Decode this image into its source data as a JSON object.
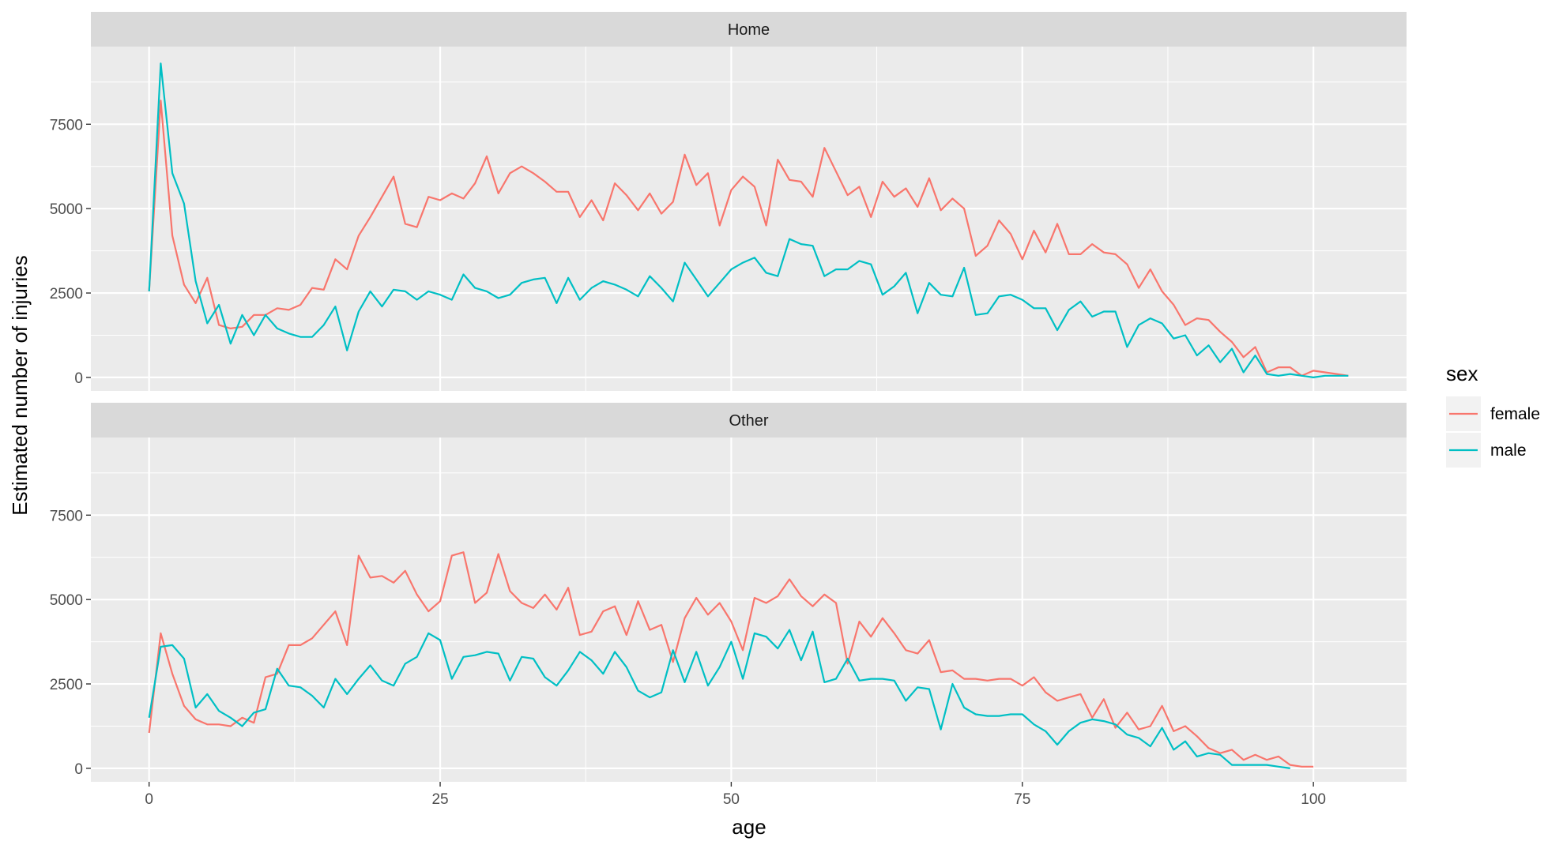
{
  "chart_data": {
    "type": "line",
    "facets": [
      "Home",
      "Other"
    ],
    "xlabel": "age",
    "ylabel": "Estimated number of injuries",
    "xlim": [
      -5,
      108
    ],
    "ylim": [
      -400,
      9800
    ],
    "x_ticks": [
      0,
      25,
      50,
      75,
      100
    ],
    "y_ticks": [
      0,
      2500,
      5000,
      7500
    ],
    "grid": true,
    "legend": {
      "title": "sex",
      "position": "right"
    },
    "colors": {
      "female": "#F8766D",
      "male": "#00BFC4"
    },
    "panels": [
      {
        "facet": "Home",
        "series": [
          {
            "name": "female",
            "x_start": 0,
            "values": [
              2550,
              8200,
              4200,
              2750,
              2200,
              2950,
              1550,
              1450,
              1500,
              1850,
              1850,
              2050,
              2000,
              2150,
              2650,
              2600,
              3500,
              3200,
              4200,
              4750,
              5350,
              5950,
              4550,
              4450,
              5350,
              5250,
              5450,
              5300,
              5750,
              6550,
              5450,
              6050,
              6250,
              6050,
              5800,
              5500,
              5500,
              4750,
              5250,
              4650,
              5750,
              5400,
              4950,
              5450,
              4850,
              5200,
              6600,
              5700,
              6050,
              4500,
              5550,
              5950,
              5650,
              4500,
              6450,
              5850,
              5800,
              5350,
              6800,
              6100,
              5400,
              5650,
              4750,
              5800,
              5350,
              5600,
              5050,
              5900,
              4950,
              5300,
              5000,
              3600,
              3900,
              4650,
              4250,
              3500,
              4350,
              3700,
              4550,
              3650,
              3650,
              3950,
              3700,
              3650,
              3350,
              2650,
              3200,
              2550,
              2150,
              1550,
              1750,
              1700,
              1350,
              1050,
              600,
              900,
              150,
              300,
              300,
              50,
              200,
              150,
              100,
              50
            ]
          },
          {
            "name": "male",
            "x_start": 0,
            "values": [
              2550,
              9300,
              6050,
              5150,
              2850,
              1600,
              2150,
              1000,
              1850,
              1250,
              1850,
              1450,
              1300,
              1200,
              1200,
              1550,
              2100,
              800,
              1950,
              2550,
              2100,
              2600,
              2550,
              2300,
              2550,
              2450,
              2300,
              3050,
              2650,
              2550,
              2350,
              2450,
              2800,
              2900,
              2950,
              2200,
              2950,
              2300,
              2650,
              2850,
              2750,
              2600,
              2400,
              3000,
              2650,
              2250,
              3400,
              2900,
              2400,
              2800,
              3200,
              3400,
              3550,
              3100,
              3000,
              4100,
              3950,
              3900,
              3000,
              3200,
              3200,
              3450,
              3350,
              2450,
              2700,
              3100,
              1900,
              2800,
              2450,
              2400,
              3250,
              1850,
              1900,
              2400,
              2450,
              2300,
              2050,
              2050,
              1400,
              2000,
              2250,
              1800,
              1950,
              1950,
              900,
              1550,
              1750,
              1600,
              1150,
              1250,
              650,
              950,
              450,
              850,
              150,
              650,
              100,
              50,
              100,
              50,
              0,
              50,
              50,
              50
            ]
          }
        ]
      },
      {
        "facet": "Other",
        "series": [
          {
            "name": "female",
            "x_start": 0,
            "values": [
              1050,
              4000,
              2800,
              1850,
              1450,
              1300,
              1300,
              1250,
              1500,
              1350,
              2700,
              2800,
              3650,
              3650,
              3850,
              4250,
              4650,
              3650,
              6300,
              5650,
              5700,
              5500,
              5850,
              5150,
              4650,
              4950,
              6300,
              6400,
              4900,
              5200,
              6350,
              5250,
              4900,
              4750,
              5150,
              4700,
              5350,
              3950,
              4050,
              4650,
              4800,
              3950,
              4950,
              4100,
              4250,
              3150,
              4450,
              5050,
              4550,
              4900,
              4350,
              3500,
              5050,
              4900,
              5100,
              5600,
              5100,
              4800,
              5150,
              4900,
              3100,
              4350,
              3900,
              4450,
              4000,
              3500,
              3400,
              3800,
              2850,
              2900,
              2650,
              2650,
              2600,
              2650,
              2650,
              2450,
              2700,
              2250,
              2000,
              2100,
              2200,
              1500,
              2050,
              1200,
              1650,
              1150,
              1250,
              1850,
              1100,
              1250,
              950,
              600,
              450,
              550,
              250,
              400,
              250,
              350,
              100,
              50,
              50
            ]
          },
          {
            "name": "male",
            "x_start": 0,
            "values": [
              1500,
              3600,
              3650,
              3250,
              1800,
              2200,
              1700,
              1500,
              1250,
              1650,
              1750,
              2950,
              2450,
              2400,
              2150,
              1800,
              2650,
              2200,
              2650,
              3050,
              2600,
              2450,
              3100,
              3300,
              4000,
              3800,
              2650,
              3300,
              3350,
              3450,
              3400,
              2600,
              3300,
              3250,
              2700,
              2450,
              2900,
              3450,
              3200,
              2800,
              3450,
              3000,
              2300,
              2100,
              2250,
              3500,
              2550,
              3450,
              2450,
              3000,
              3750,
              2650,
              4000,
              3900,
              3550,
              4100,
              3200,
              4050,
              2550,
              2650,
              3250,
              2600,
              2650,
              2650,
              2600,
              2000,
              2400,
              2350,
              1150,
              2500,
              1800,
              1600,
              1550,
              1550,
              1600,
              1600,
              1300,
              1100,
              700,
              1100,
              1350,
              1450,
              1400,
              1300,
              1000,
              900,
              650,
              1200,
              550,
              800,
              350,
              450,
              400,
              100,
              100,
              100,
              100,
              50,
              0
            ]
          }
        ]
      }
    ]
  }
}
